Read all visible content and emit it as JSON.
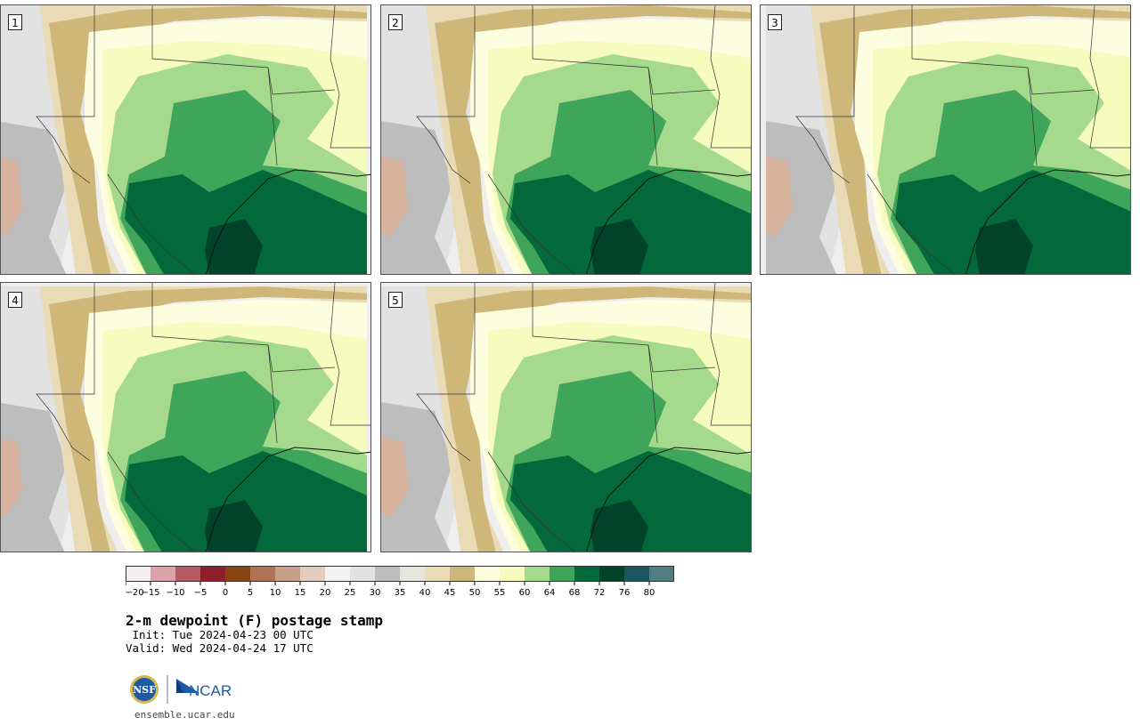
{
  "panels": [
    {
      "label": "1"
    },
    {
      "label": "2"
    },
    {
      "label": "3"
    },
    {
      "label": "4"
    },
    {
      "label": "5"
    }
  ],
  "colorbar": {
    "ticks": [
      "−20",
      "−15",
      "−10",
      "−5",
      "0",
      "5",
      "10",
      "15",
      "20",
      "25",
      "30",
      "35",
      "40",
      "45",
      "50",
      "55",
      "60",
      "64",
      "68",
      "72",
      "76",
      "80"
    ],
    "colors": [
      "#f5eded",
      "#d9a3a8",
      "#b55a62",
      "#8f1f28",
      "#8a4414",
      "#ad7352",
      "#c7a08a",
      "#e3cbbf",
      "#f2f2f2",
      "#e2e2e2",
      "#bdbdbd",
      "#e6e6df",
      "#e8dbb6",
      "#cfb77a",
      "#fdfde0",
      "#f6fbbe",
      "#a5d98c",
      "#3ea55a",
      "#03693a",
      "#00432a",
      "#1c5462",
      "#517f80"
    ]
  },
  "title": "2-m dewpoint (F) postage stamp",
  "init": " Init: Tue 2024-04-23 00 UTC",
  "valid": "Valid: Wed 2024-04-24 17 UTC",
  "logos": {
    "nsf": "NSF",
    "ncar": "NCAR"
  },
  "site": "ensemble.ucar.edu"
}
